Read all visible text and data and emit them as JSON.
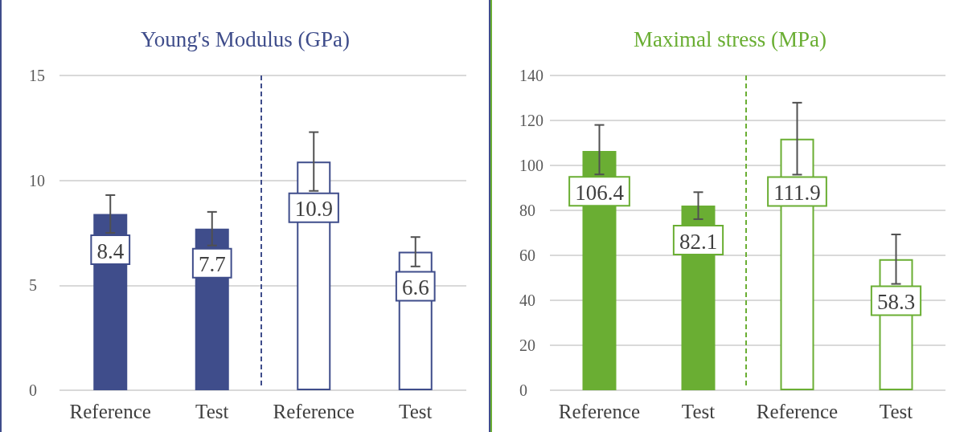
{
  "chart_data": [
    {
      "type": "bar",
      "title": "Young's Modulus (GPa)",
      "categories": [
        "Reference",
        "Test",
        "Reference",
        "Test"
      ],
      "series": [
        {
          "color": "#3f4d8b",
          "colors": [
            "#3f4d8b",
            "#3f4d8b",
            "#ffffff",
            "#ffffff"
          ],
          "values": [
            8.4,
            7.7,
            10.9,
            6.6
          ],
          "errors": [
            0.9,
            0.8,
            1.4,
            0.7
          ]
        }
      ],
      "ylim": [
        0,
        15
      ],
      "yticks": [
        0,
        5,
        10,
        15
      ],
      "grid": "y",
      "data_labels": true
    },
    {
      "type": "bar",
      "title": "Maximal stress (MPa)",
      "categories": [
        "Reference",
        "Test",
        "Reference",
        "Test"
      ],
      "series": [
        {
          "color": "#6aae33",
          "colors": [
            "#6aae33",
            "#6aae33",
            "#ffffff",
            "#ffffff"
          ],
          "values": [
            106.4,
            82.1,
            111.9,
            58.3
          ],
          "errors": [
            [
              96,
              118
            ],
            6,
            16,
            11
          ]
        }
      ],
      "ylim": [
        0,
        140
      ],
      "yticks": [
        0,
        20,
        40,
        60,
        80,
        100,
        120,
        140
      ],
      "grid": "y",
      "data_labels": true
    }
  ]
}
